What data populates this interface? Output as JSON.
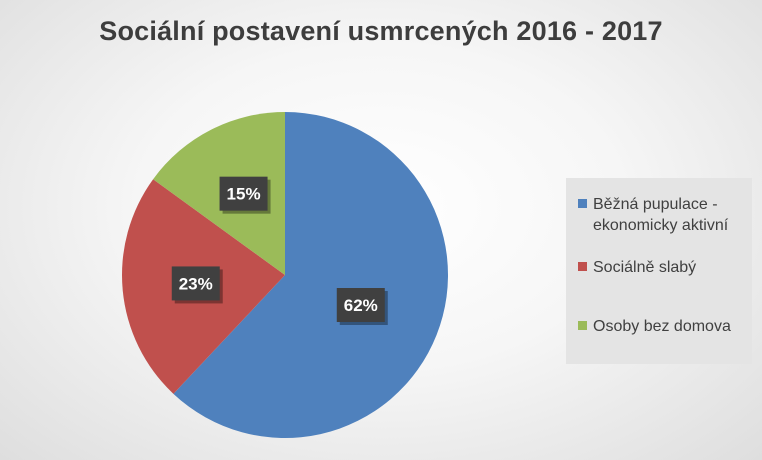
{
  "chart_data": {
    "type": "pie",
    "title": "Sociální postavení usmrcených 2016 - 2017",
    "categories": [
      "Běžná pupulace - ekonomicky aktivní",
      "Sociálně slabý",
      "Osoby bez domova"
    ],
    "values": [
      62,
      23,
      15
    ],
    "data_labels": [
      "62%",
      "23%",
      "15%"
    ],
    "colors": [
      "#4f81bd",
      "#c0504d",
      "#9bbb59"
    ],
    "legend": {
      "position": "right"
    }
  }
}
